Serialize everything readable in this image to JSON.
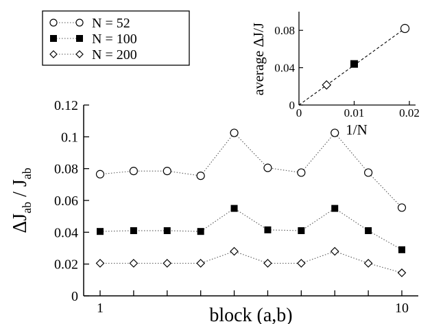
{
  "chart_data": [
    {
      "type": "line",
      "panel": "main",
      "x": [
        1,
        2,
        3,
        4,
        5,
        6,
        7,
        8,
        9,
        10
      ],
      "x_tick_labels": [
        "1",
        "10"
      ],
      "xlabel": "block (a,b)",
      "ylabel": "ΔJab / Jab",
      "ylabel_main": "ΔJ",
      "ylabel_sub1": "ab",
      "ylabel_slash": " / J",
      "ylabel_sub2": "ab",
      "ylim": [
        0,
        0.12
      ],
      "y_ticks": [
        0,
        0.02,
        0.04,
        0.06,
        0.08,
        0.1,
        0.12
      ],
      "y_tick_labels": [
        "0",
        "0.02",
        "0.04",
        "0.06",
        "0.08",
        "0.1",
        "0.12"
      ],
      "grid": false,
      "legend_position": "top-left",
      "series": [
        {
          "name": "N = 52",
          "marker": "open-circle",
          "values": [
            0.0765,
            0.0785,
            0.0785,
            0.0755,
            0.1025,
            0.0805,
            0.0775,
            0.1025,
            0.0775,
            0.0555
          ]
        },
        {
          "name": "N = 100",
          "marker": "filled-square",
          "values": [
            0.0405,
            0.041,
            0.041,
            0.0405,
            0.055,
            0.0415,
            0.041,
            0.055,
            0.041,
            0.029
          ]
        },
        {
          "name": "N = 200",
          "marker": "open-diamond",
          "values": [
            0.0205,
            0.0205,
            0.0205,
            0.0205,
            0.028,
            0.0205,
            0.0205,
            0.028,
            0.0205,
            0.0145
          ]
        }
      ]
    },
    {
      "type": "line",
      "panel": "inset",
      "xlabel": "1/N",
      "ylabel": "average ΔJ/J",
      "xlim": [
        0,
        0.02
      ],
      "ylim": [
        0,
        0.1
      ],
      "x_ticks": [
        0,
        0.01,
        0.02
      ],
      "x_tick_labels": [
        "0",
        "0.01",
        "0.02"
      ],
      "y_ticks": [
        0,
        0.04,
        0.08
      ],
      "y_tick_labels": [
        "0",
        "0.04",
        "0.08"
      ],
      "grid": false,
      "line_style": "dashed",
      "points": [
        {
          "x": 0.005,
          "y": 0.0215,
          "marker": "open-diamond"
        },
        {
          "x": 0.01,
          "y": 0.044,
          "marker": "filled-square"
        },
        {
          "x": 0.0192,
          "y": 0.082,
          "marker": "open-circle"
        }
      ],
      "line": {
        "x": [
          0,
          0.0192
        ],
        "y": [
          0,
          0.082
        ]
      }
    }
  ]
}
